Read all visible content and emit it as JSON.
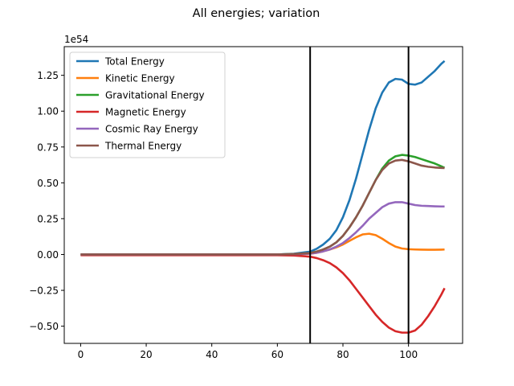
{
  "chart_data": {
    "type": "line",
    "title": "All energies; variation",
    "xlabel": "",
    "ylabel": "",
    "y_offset_label": "1e54",
    "xlim": [
      -5,
      116.5
    ],
    "ylim": [
      -0.62,
      1.45
    ],
    "x_ticks": [
      0,
      20,
      40,
      60,
      80,
      100
    ],
    "x_tick_labels": [
      "0",
      "20",
      "40",
      "60",
      "80",
      "100"
    ],
    "y_ticks": [
      -0.5,
      -0.25,
      0.0,
      0.25,
      0.5,
      0.75,
      1.0,
      1.25
    ],
    "y_tick_labels": [
      "−0.50",
      "−0.25",
      "0.00",
      "0.25",
      "0.50",
      "0.75",
      "1.00",
      "1.25"
    ],
    "grid": false,
    "legend_position": "top-left",
    "vertical_lines": [
      70,
      100
    ],
    "series": [
      {
        "name": "Total Energy",
        "color": "#1f77b4",
        "x": [
          0,
          10,
          20,
          30,
          40,
          50,
          60,
          65,
          70,
          72,
          74,
          76,
          78,
          80,
          82,
          84,
          86,
          88,
          90,
          92,
          94,
          96,
          98,
          100,
          102,
          104,
          106,
          108,
          110,
          111
        ],
        "y": [
          0,
          0,
          0,
          0,
          0,
          0,
          0,
          0.005,
          0.02,
          0.04,
          0.07,
          0.11,
          0.17,
          0.26,
          0.38,
          0.53,
          0.7,
          0.87,
          1.02,
          1.13,
          1.2,
          1.225,
          1.22,
          1.19,
          1.185,
          1.2,
          1.24,
          1.28,
          1.33,
          1.35
        ]
      },
      {
        "name": "Kinetic Energy",
        "color": "#ff7f0e",
        "x": [
          0,
          10,
          20,
          30,
          40,
          50,
          60,
          65,
          70,
          72,
          74,
          76,
          78,
          80,
          82,
          84,
          86,
          88,
          90,
          92,
          94,
          96,
          98,
          100,
          102,
          104,
          106,
          108,
          110,
          111
        ],
        "y": [
          0,
          0,
          0,
          0,
          0,
          0,
          0,
          0.002,
          0.005,
          0.012,
          0.022,
          0.035,
          0.05,
          0.07,
          0.095,
          0.12,
          0.14,
          0.145,
          0.135,
          0.11,
          0.08,
          0.055,
          0.042,
          0.037,
          0.035,
          0.034,
          0.033,
          0.033,
          0.034,
          0.035
        ]
      },
      {
        "name": "Gravitational Energy",
        "color": "#2ca02c",
        "x": [
          0,
          10,
          20,
          30,
          40,
          50,
          60,
          65,
          70,
          72,
          74,
          76,
          78,
          80,
          82,
          84,
          86,
          88,
          90,
          92,
          94,
          96,
          98,
          100,
          102,
          104,
          106,
          108,
          110,
          111
        ],
        "y": [
          0,
          0,
          0,
          0,
          0,
          0,
          0,
          0.003,
          0.01,
          0.02,
          0.035,
          0.055,
          0.085,
          0.13,
          0.19,
          0.26,
          0.34,
          0.43,
          0.52,
          0.6,
          0.655,
          0.685,
          0.695,
          0.69,
          0.68,
          0.665,
          0.65,
          0.635,
          0.615,
          0.605
        ]
      },
      {
        "name": "Magnetic Energy",
        "color": "#d62728",
        "x": [
          0,
          10,
          20,
          30,
          40,
          50,
          60,
          65,
          70,
          72,
          74,
          76,
          78,
          80,
          82,
          84,
          86,
          88,
          90,
          92,
          94,
          96,
          98,
          100,
          102,
          104,
          106,
          108,
          110,
          111
        ],
        "y": [
          -0.005,
          -0.005,
          -0.005,
          -0.005,
          -0.005,
          -0.005,
          -0.005,
          -0.007,
          -0.015,
          -0.025,
          -0.04,
          -0.06,
          -0.09,
          -0.13,
          -0.18,
          -0.24,
          -0.3,
          -0.36,
          -0.42,
          -0.47,
          -0.51,
          -0.535,
          -0.545,
          -0.545,
          -0.53,
          -0.49,
          -0.43,
          -0.36,
          -0.28,
          -0.235
        ]
      },
      {
        "name": "Cosmic Ray Energy",
        "color": "#9467bd",
        "x": [
          0,
          10,
          20,
          30,
          40,
          50,
          60,
          65,
          70,
          72,
          74,
          76,
          78,
          80,
          82,
          84,
          86,
          88,
          90,
          92,
          94,
          96,
          98,
          100,
          102,
          104,
          106,
          108,
          110,
          111
        ],
        "y": [
          0,
          0,
          0,
          0,
          0,
          0,
          0,
          0.002,
          0.006,
          0.012,
          0.022,
          0.035,
          0.055,
          0.08,
          0.115,
          0.155,
          0.2,
          0.25,
          0.29,
          0.33,
          0.355,
          0.365,
          0.365,
          0.355,
          0.345,
          0.34,
          0.338,
          0.336,
          0.335,
          0.335
        ]
      },
      {
        "name": "Thermal Energy",
        "color": "#8c564b",
        "x": [
          0,
          10,
          20,
          30,
          40,
          50,
          60,
          65,
          70,
          72,
          74,
          76,
          78,
          80,
          82,
          84,
          86,
          88,
          90,
          92,
          94,
          96,
          98,
          100,
          102,
          104,
          106,
          108,
          110,
          111
        ],
        "y": [
          0,
          0,
          0,
          0,
          0,
          0,
          0,
          0.003,
          0.01,
          0.02,
          0.035,
          0.055,
          0.085,
          0.13,
          0.19,
          0.26,
          0.34,
          0.43,
          0.52,
          0.59,
          0.635,
          0.655,
          0.66,
          0.65,
          0.635,
          0.62,
          0.612,
          0.607,
          0.604,
          0.603
        ]
      }
    ]
  }
}
